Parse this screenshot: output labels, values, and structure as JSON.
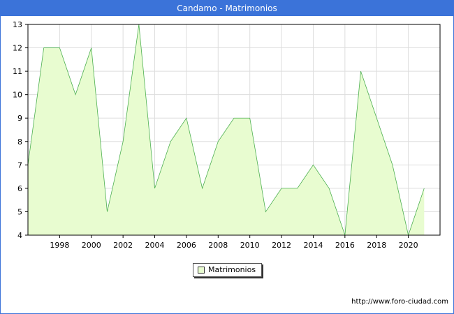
{
  "window": {
    "title": "Candamo - Matrimonios"
  },
  "chart_data": {
    "type": "area",
    "title": "Candamo - Matrimonios",
    "xlabel": "",
    "ylabel": "",
    "x": [
      1996,
      1997,
      1998,
      1999,
      2000,
      2001,
      2002,
      2003,
      2004,
      2005,
      2006,
      2007,
      2008,
      2009,
      2010,
      2011,
      2012,
      2013,
      2014,
      2015,
      2016,
      2017,
      2018,
      2019,
      2020,
      2021
    ],
    "series": [
      {
        "name": "Matrimonios",
        "values": [
          7,
          12,
          12,
          10,
          12,
          5,
          8,
          13,
          6,
          8,
          9,
          6,
          8,
          9,
          9,
          5,
          6,
          6,
          7,
          6,
          4,
          11,
          9,
          7,
          4,
          6
        ]
      }
    ],
    "xlim": [
      1996,
      2022
    ],
    "ylim": [
      4,
      13
    ],
    "xticks": [
      1998,
      2000,
      2002,
      2004,
      2006,
      2008,
      2010,
      2012,
      2014,
      2016,
      2018,
      2020
    ],
    "yticks": [
      4,
      5,
      6,
      7,
      8,
      9,
      10,
      11,
      12,
      13
    ],
    "grid": true,
    "legend": "bottom-center",
    "colors": {
      "fill": "#e8fcd0",
      "line": "#4caf50",
      "grid": "#dddddd",
      "header": "#3b73d9"
    }
  },
  "legend": {
    "label": "Matrimonios"
  },
  "footer": {
    "source": "http://www.foro-ciudad.com"
  }
}
